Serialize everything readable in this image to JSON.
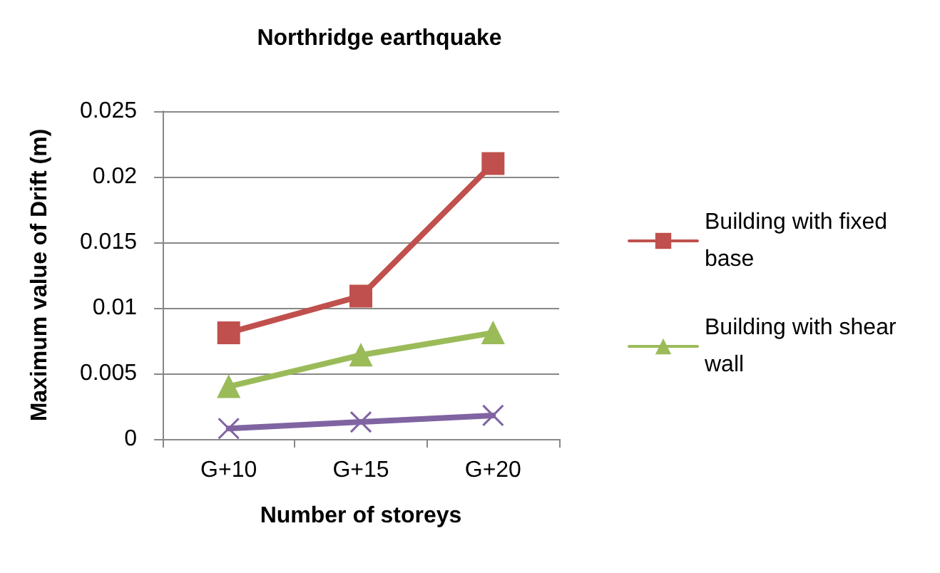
{
  "chart_data": {
    "type": "line",
    "title": "Northridge earthquake",
    "xlabel": "Number of storeys",
    "ylabel": "Maximum value of Drift (m)",
    "categories": [
      "G+10",
      "G+15",
      "G+20"
    ],
    "series": [
      {
        "name": "Building with fixed base",
        "color": "#c0504d",
        "marker": "square",
        "values": [
          0.0081,
          0.0109,
          0.021
        ]
      },
      {
        "name": "Building with shear wall",
        "color": "#9bbb59",
        "marker": "triangle",
        "values": [
          0.004,
          0.0064,
          0.0081
        ]
      },
      {
        "color": "#8064a2",
        "marker": "cross",
        "values": [
          0.0008,
          0.0013,
          0.0018
        ]
      }
    ],
    "ylim": [
      0,
      0.025
    ],
    "yticks": [
      0,
      0.005,
      0.01,
      0.015,
      0.02,
      0.025
    ],
    "grid": "y",
    "legend": "right"
  }
}
